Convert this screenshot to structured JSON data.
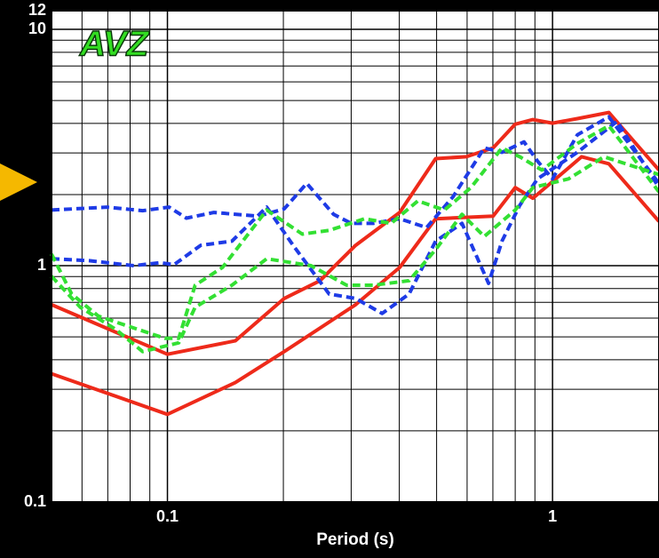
{
  "chart_data": {
    "type": "line",
    "annotation": "AVZ",
    "xlabel": "Period (s)",
    "xscale": "log",
    "yscale": "log",
    "xlim": [
      0.05,
      1.89
    ],
    "ylim": [
      0.1,
      12
    ],
    "xticks": [
      0.1,
      1
    ],
    "yticks": [
      0.1,
      1,
      10,
      12
    ],
    "xminor": [
      0.05,
      0.06,
      0.07,
      0.08,
      0.09,
      0.2,
      0.3,
      0.4,
      0.5,
      0.6,
      0.7,
      0.8,
      0.9
    ],
    "yminor": [
      0.2,
      0.3,
      0.4,
      0.5,
      0.6,
      0.7,
      0.8,
      0.9,
      2,
      3,
      4,
      5,
      6,
      7,
      8,
      9
    ],
    "grid": true,
    "series": [
      {
        "color": "#ee2a1a",
        "dash": false,
        "x": [
          0.05,
          0.1,
          0.15,
          0.201,
          0.249,
          0.308,
          0.401,
          0.497,
          0.597,
          0.701,
          0.8,
          0.889,
          1.0,
          1.16,
          1.4,
          1.89
        ],
        "values": [
          0.684,
          0.422,
          0.481,
          0.727,
          0.864,
          1.22,
          1.68,
          2.84,
          2.89,
          3.15,
          3.97,
          4.15,
          4.01,
          4.19,
          4.45,
          2.54
        ]
      },
      {
        "color": "#ee2a1a",
        "dash": false,
        "x": [
          0.05,
          0.1,
          0.15,
          0.201,
          0.308,
          0.401,
          0.497,
          0.701,
          0.8,
          0.889,
          1.19,
          1.4,
          1.89
        ],
        "values": [
          0.349,
          0.235,
          0.32,
          0.433,
          0.684,
          0.983,
          1.58,
          1.62,
          2.14,
          1.93,
          2.89,
          2.7,
          1.54
        ]
      },
      {
        "color": "#1e3be6",
        "dash": true,
        "x": [
          0.05,
          0.0697,
          0.0862,
          0.101,
          0.112,
          0.132,
          0.172,
          0.201,
          0.23,
          0.27,
          0.3,
          0.342,
          0.401,
          0.471,
          0.552,
          0.665,
          0.739,
          0.843,
          0.914,
          1.0,
          1.16,
          1.4,
          1.89
        ],
        "values": [
          1.72,
          1.77,
          1.71,
          1.77,
          1.59,
          1.68,
          1.62,
          1.74,
          2.23,
          1.65,
          1.51,
          1.51,
          1.58,
          1.45,
          1.96,
          3.15,
          3.02,
          3.34,
          2.77,
          2.33,
          3.58,
          4.26,
          2.23
        ]
      },
      {
        "color": "#1e3be6",
        "dash": true,
        "x": [
          0.05,
          0.0627,
          0.0818,
          0.0958,
          0.104,
          0.122,
          0.147,
          0.181,
          0.212,
          0.263,
          0.308,
          0.361,
          0.424,
          0.497,
          0.582,
          0.682,
          0.739,
          0.822,
          0.914,
          1.16,
          1.47,
          1.89
        ],
        "values": [
          1.07,
          1.05,
          1.0,
          1.03,
          1.01,
          1.22,
          1.27,
          1.77,
          1.22,
          0.759,
          0.727,
          0.628,
          0.759,
          1.27,
          1.51,
          0.842,
          1.27,
          1.8,
          2.33,
          3.02,
          4.08,
          2.14
        ]
      },
      {
        "color": "#33e033",
        "dash": true,
        "x": [
          0.05,
          0.0564,
          0.0661,
          0.0775,
          0.0984,
          0.107,
          0.118,
          0.139,
          0.181,
          0.224,
          0.263,
          0.325,
          0.381,
          0.447,
          0.524,
          0.614,
          0.739,
          0.822,
          0.938,
          1.16,
          1.4,
          1.89
        ],
        "values": [
          1.12,
          0.759,
          0.612,
          0.561,
          0.493,
          0.493,
          0.827,
          0.983,
          1.72,
          1.36,
          1.41,
          1.58,
          1.51,
          1.88,
          1.72,
          2.14,
          3.15,
          2.89,
          2.54,
          3.29,
          3.91,
          2.05
        ]
      },
      {
        "color": "#33e033",
        "dash": true,
        "x": [
          0.05,
          0.0594,
          0.0735,
          0.0862,
          0.107,
          0.118,
          0.147,
          0.181,
          0.236,
          0.292,
          0.342,
          0.424,
          0.497,
          0.582,
          0.665,
          0.8,
          0.889,
          1.1,
          1.36,
          1.89
        ],
        "values": [
          0.902,
          0.667,
          0.537,
          0.433,
          0.472,
          0.667,
          0.827,
          1.07,
          1.0,
          0.827,
          0.827,
          0.864,
          1.17,
          1.65,
          1.33,
          1.72,
          2.14,
          2.33,
          2.89,
          2.43
        ]
      }
    ]
  }
}
